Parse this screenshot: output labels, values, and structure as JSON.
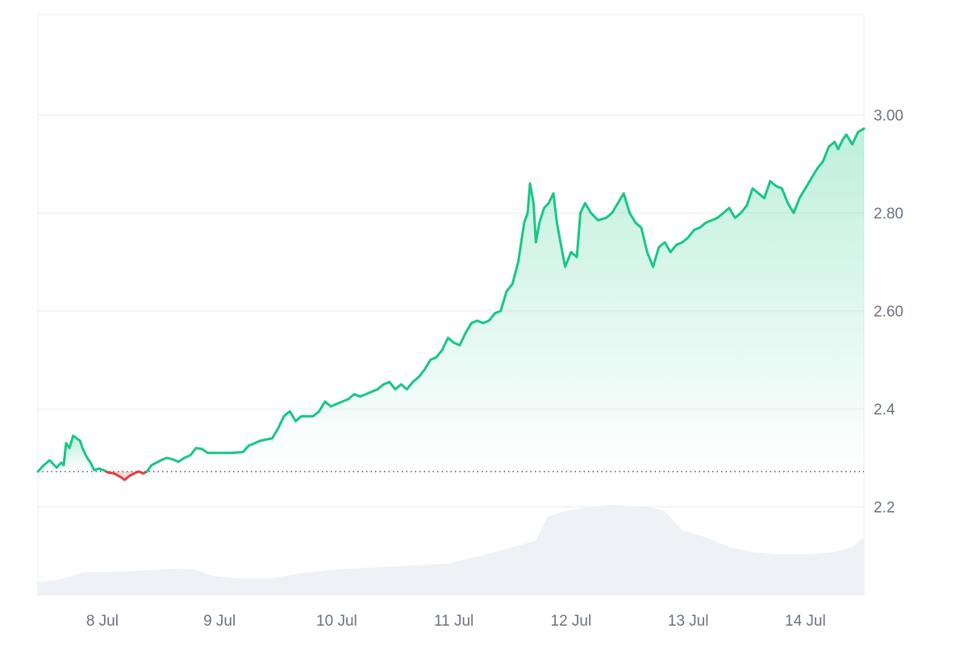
{
  "chart_data": {
    "type": "area",
    "title": "",
    "xlabel": "",
    "ylabel": "",
    "x_ticks": [
      {
        "label": "8 Jul",
        "x": 0.55
      },
      {
        "label": "9 Jul",
        "x": 1.55
      },
      {
        "label": "10 Jul",
        "x": 2.55
      },
      {
        "label": "11 Jul",
        "x": 3.55
      },
      {
        "label": "12 Jul",
        "x": 4.55
      },
      {
        "label": "13 Jul",
        "x": 5.55
      },
      {
        "label": "14 Jul",
        "x": 6.55
      }
    ],
    "y_ticks": [
      {
        "label": "2.2",
        "value": 2.2
      },
      {
        "label": "2.4",
        "value": 2.4
      },
      {
        "label": "2.60",
        "value": 2.6
      },
      {
        "label": "2.80",
        "value": 2.8
      },
      {
        "label": "3.00",
        "value": 3.0
      }
    ],
    "xlim": [
      0,
      7.05
    ],
    "ylim": [
      2.02,
      3.205
    ],
    "baseline": 2.272,
    "grid": true,
    "colors": {
      "up": "#16c784",
      "down": "#ea3943",
      "grid": "#eef0f3",
      "volume": "#eef1f5",
      "baseline": "#555555"
    },
    "series": [
      {
        "type": "line",
        "points": [
          [
            0,
            2.272
          ],
          [
            0.05,
            2.285
          ],
          [
            0.1,
            2.295
          ],
          [
            0.16,
            2.28
          ],
          [
            0.2,
            2.29
          ],
          [
            0.22,
            2.285
          ],
          [
            0.24,
            2.33
          ],
          [
            0.27,
            2.32
          ],
          [
            0.3,
            2.345
          ],
          [
            0.33,
            2.34
          ],
          [
            0.36,
            2.335
          ],
          [
            0.38,
            2.32
          ],
          [
            0.42,
            2.3
          ],
          [
            0.45,
            2.29
          ],
          [
            0.48,
            2.275
          ],
          [
            0.52,
            2.278
          ],
          [
            0.56,
            2.275
          ],
          [
            0.6,
            2.27
          ],
          [
            0.65,
            2.268
          ],
          [
            0.7,
            2.262
          ],
          [
            0.74,
            2.255
          ],
          [
            0.78,
            2.263
          ],
          [
            0.82,
            2.268
          ],
          [
            0.86,
            2.272
          ],
          [
            0.9,
            2.268
          ],
          [
            0.93,
            2.272
          ],
          [
            0.97,
            2.285
          ],
          [
            1.05,
            2.295
          ],
          [
            1.1,
            2.3
          ],
          [
            1.15,
            2.297
          ],
          [
            1.2,
            2.292
          ],
          [
            1.25,
            2.3
          ],
          [
            1.3,
            2.305
          ],
          [
            1.35,
            2.32
          ],
          [
            1.4,
            2.318
          ],
          [
            1.45,
            2.31
          ],
          [
            1.55,
            2.31
          ],
          [
            1.65,
            2.31
          ],
          [
            1.75,
            2.312
          ],
          [
            1.8,
            2.325
          ],
          [
            1.9,
            2.335
          ],
          [
            2.0,
            2.34
          ],
          [
            2.05,
            2.36
          ],
          [
            2.1,
            2.385
          ],
          [
            2.15,
            2.395
          ],
          [
            2.2,
            2.375
          ],
          [
            2.25,
            2.385
          ],
          [
            2.35,
            2.385
          ],
          [
            2.4,
            2.395
          ],
          [
            2.45,
            2.415
          ],
          [
            2.5,
            2.405
          ],
          [
            2.55,
            2.41
          ],
          [
            2.6,
            2.415
          ],
          [
            2.65,
            2.42
          ],
          [
            2.7,
            2.43
          ],
          [
            2.75,
            2.425
          ],
          [
            2.8,
            2.43
          ],
          [
            2.85,
            2.435
          ],
          [
            2.9,
            2.44
          ],
          [
            2.95,
            2.45
          ],
          [
            3.0,
            2.455
          ],
          [
            3.05,
            2.44
          ],
          [
            3.1,
            2.45
          ],
          [
            3.15,
            2.44
          ],
          [
            3.2,
            2.455
          ],
          [
            3.25,
            2.465
          ],
          [
            3.3,
            2.48
          ],
          [
            3.35,
            2.5
          ],
          [
            3.4,
            2.505
          ],
          [
            3.45,
            2.52
          ],
          [
            3.5,
            2.545
          ],
          [
            3.55,
            2.535
          ],
          [
            3.6,
            2.53
          ],
          [
            3.65,
            2.555
          ],
          [
            3.7,
            2.575
          ],
          [
            3.75,
            2.58
          ],
          [
            3.8,
            2.575
          ],
          [
            3.85,
            2.58
          ],
          [
            3.9,
            2.595
          ],
          [
            3.95,
            2.6
          ],
          [
            4.0,
            2.64
          ],
          [
            4.05,
            2.655
          ],
          [
            4.1,
            2.7
          ],
          [
            4.15,
            2.78
          ],
          [
            4.18,
            2.8
          ],
          [
            4.2,
            2.86
          ],
          [
            4.23,
            2.82
          ],
          [
            4.25,
            2.74
          ],
          [
            4.28,
            2.78
          ],
          [
            4.32,
            2.81
          ],
          [
            4.36,
            2.82
          ],
          [
            4.4,
            2.84
          ],
          [
            4.43,
            2.78
          ],
          [
            4.46,
            2.74
          ],
          [
            4.5,
            2.69
          ],
          [
            4.55,
            2.72
          ],
          [
            4.6,
            2.71
          ],
          [
            4.63,
            2.8
          ],
          [
            4.67,
            2.82
          ],
          [
            4.72,
            2.8
          ],
          [
            4.78,
            2.785
          ],
          [
            4.85,
            2.79
          ],
          [
            4.9,
            2.8
          ],
          [
            4.95,
            2.82
          ],
          [
            5.0,
            2.84
          ],
          [
            5.05,
            2.8
          ],
          [
            5.1,
            2.78
          ],
          [
            5.15,
            2.77
          ],
          [
            5.2,
            2.72
          ],
          [
            5.25,
            2.69
          ],
          [
            5.3,
            2.73
          ],
          [
            5.35,
            2.74
          ],
          [
            5.4,
            2.72
          ],
          [
            5.45,
            2.735
          ],
          [
            5.5,
            2.74
          ],
          [
            5.55,
            2.75
          ],
          [
            5.6,
            2.765
          ],
          [
            5.65,
            2.77
          ],
          [
            5.7,
            2.78
          ],
          [
            5.75,
            2.785
          ],
          [
            5.8,
            2.79
          ],
          [
            5.85,
            2.8
          ],
          [
            5.9,
            2.81
          ],
          [
            5.95,
            2.79
          ],
          [
            6.0,
            2.8
          ],
          [
            6.05,
            2.815
          ],
          [
            6.1,
            2.85
          ],
          [
            6.15,
            2.84
          ],
          [
            6.2,
            2.83
          ],
          [
            6.25,
            2.865
          ],
          [
            6.3,
            2.855
          ],
          [
            6.35,
            2.85
          ],
          [
            6.4,
            2.82
          ],
          [
            6.45,
            2.8
          ],
          [
            6.5,
            2.83
          ],
          [
            6.55,
            2.85
          ],
          [
            6.6,
            2.87
          ],
          [
            6.65,
            2.89
          ],
          [
            6.7,
            2.905
          ],
          [
            6.75,
            2.935
          ],
          [
            6.8,
            2.945
          ],
          [
            6.83,
            2.93
          ],
          [
            6.87,
            2.95
          ],
          [
            6.9,
            2.96
          ],
          [
            6.95,
            2.94
          ],
          [
            7.0,
            2.965
          ],
          [
            7.05,
            2.972
          ]
        ]
      },
      {
        "type": "volume",
        "points": [
          [
            0,
            0.12
          ],
          [
            0.2,
            0.15
          ],
          [
            0.4,
            0.22
          ],
          [
            0.6,
            0.22
          ],
          [
            1.0,
            0.24
          ],
          [
            1.2,
            0.25
          ],
          [
            1.35,
            0.24
          ],
          [
            1.5,
            0.18
          ],
          [
            1.7,
            0.16
          ],
          [
            2.0,
            0.16
          ],
          [
            2.2,
            0.2
          ],
          [
            2.5,
            0.24
          ],
          [
            2.8,
            0.26
          ],
          [
            3.2,
            0.28
          ],
          [
            3.5,
            0.3
          ],
          [
            3.8,
            0.38
          ],
          [
            4.1,
            0.47
          ],
          [
            4.25,
            0.52
          ],
          [
            4.35,
            0.75
          ],
          [
            4.5,
            0.8
          ],
          [
            4.7,
            0.84
          ],
          [
            4.9,
            0.86
          ],
          [
            5.2,
            0.84
          ],
          [
            5.35,
            0.8
          ],
          [
            5.5,
            0.62
          ],
          [
            5.7,
            0.55
          ],
          [
            5.9,
            0.46
          ],
          [
            6.1,
            0.41
          ],
          [
            6.3,
            0.39
          ],
          [
            6.6,
            0.39
          ],
          [
            6.8,
            0.41
          ],
          [
            6.95,
            0.46
          ],
          [
            7.05,
            0.55
          ]
        ]
      }
    ]
  }
}
